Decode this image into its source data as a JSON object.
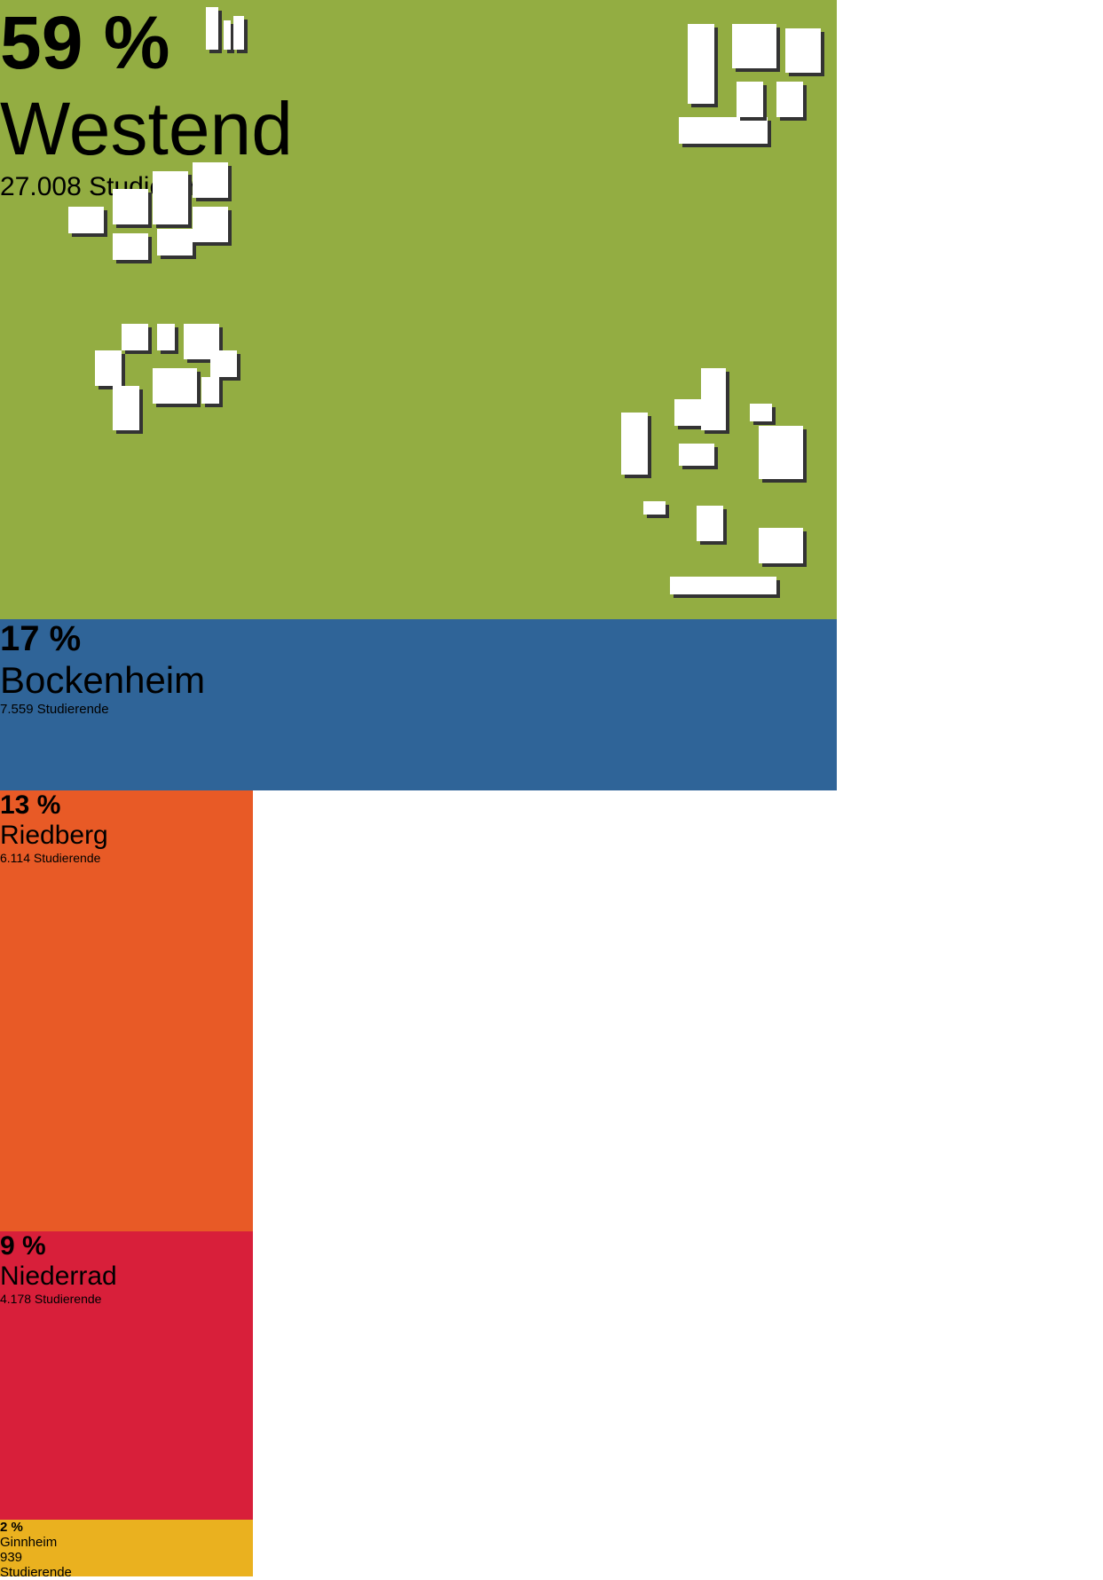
{
  "chart_data": {
    "type": "treemap",
    "categories": [
      "Westend",
      "Bockenheim",
      "Riedberg",
      "Niederrad",
      "Ginnheim"
    ],
    "values": [
      59,
      17,
      13,
      9,
      2
    ],
    "value_labels": [
      "59 %",
      "17 %",
      "13 %",
      "9 %",
      "2 %"
    ],
    "sublabels": [
      "27.008 Studierende",
      "7.559 Studierende",
      "6.114 Studierende",
      "4.178 Studierende",
      "939 Studierende"
    ],
    "colors": [
      "#93ad42",
      "#2f6498",
      "#e85a26",
      "#d81f3a",
      "#eab11f"
    ]
  }
}
